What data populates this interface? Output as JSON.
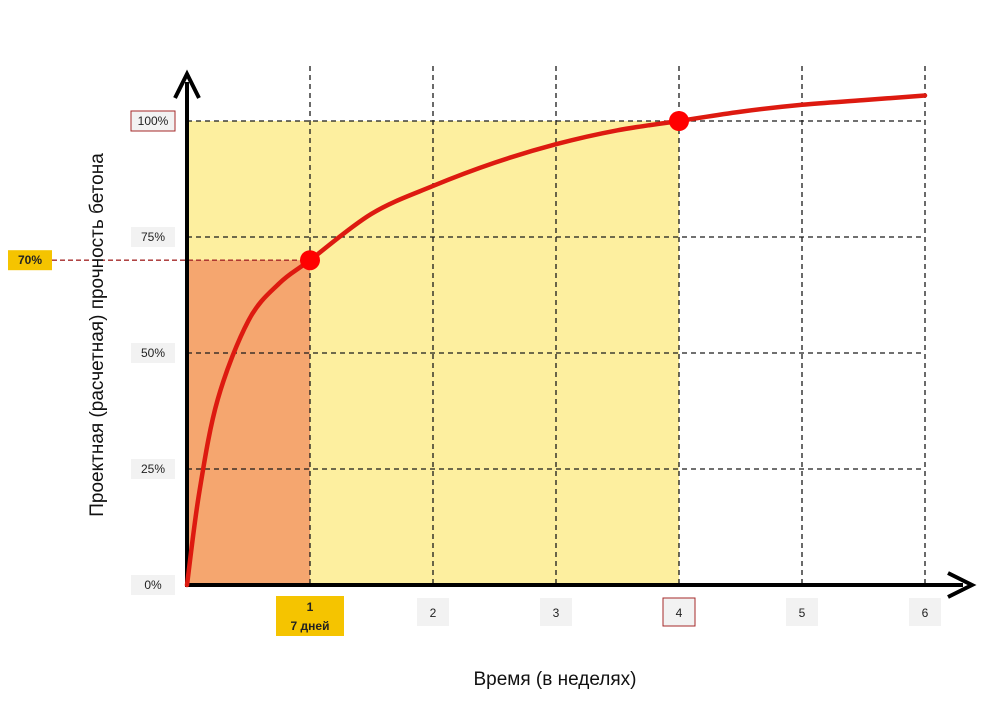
{
  "chart_data": {
    "type": "line",
    "title": "",
    "xlabel": "Время (в неделях)",
    "ylabel": "Проектная (расчетная) прочность бетона",
    "xlim": [
      0,
      6
    ],
    "ylim": [
      0,
      100
    ],
    "x_ticks": [
      "1",
      "2",
      "3",
      "4",
      "5",
      "6"
    ],
    "y_ticks": [
      "0%",
      "25%",
      "50%",
      "75%",
      "100%"
    ],
    "x_tick_highlight_sub": "7 дней",
    "y_highlight_label": "70%",
    "grid": true,
    "series": [
      {
        "name": "",
        "x": [
          0,
          0.1,
          0.25,
          0.5,
          0.75,
          1,
          1.5,
          2,
          2.5,
          3,
          3.5,
          4,
          4.5,
          5,
          5.5,
          6
        ],
        "y": [
          0,
          20,
          40,
          57,
          65,
          70,
          80,
          86,
          91,
          95,
          98,
          100,
          102,
          103.5,
          104.5,
          105.5
        ]
      }
    ],
    "highlight_points": [
      {
        "x": 1,
        "y": 70
      },
      {
        "x": 4,
        "y": 100
      }
    ],
    "regions": [
      {
        "x_range": [
          0,
          1
        ],
        "y_range": [
          0,
          70
        ],
        "color": "#f5a66f"
      },
      {
        "x_range": [
          0,
          4
        ],
        "y_range": [
          0,
          100
        ],
        "color": "#fdef9f"
      }
    ],
    "colors": {
      "curve": "#dd1a10",
      "point": "#ff0000",
      "yellow_region": "#fdef9f",
      "orange_region": "#f5a66f",
      "badge_yellow": "#f5c400",
      "boxed_border": "#a52a2a",
      "guide_line": "#a52a2a"
    }
  }
}
